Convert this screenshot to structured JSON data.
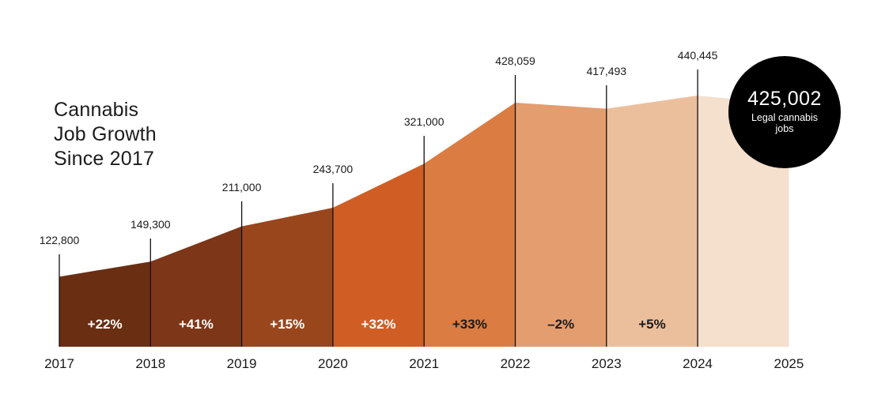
{
  "chart_data": {
    "type": "area",
    "title": [
      "Cannabis",
      "Job Growth",
      "Since 2017"
    ],
    "x": [
      "2017",
      "2018",
      "2019",
      "2020",
      "2021",
      "2022",
      "2023",
      "2024",
      "2025"
    ],
    "values": [
      122800,
      149300,
      211000,
      243700,
      321000,
      428059,
      417493,
      440445,
      425002
    ],
    "value_labels": [
      "122,800",
      "149,300",
      "211,000",
      "243,700",
      "321,000",
      "428,059",
      "417,493",
      "440,445",
      null
    ],
    "growth_labels": [
      "+22%",
      "+41%",
      "+15%",
      "+32%",
      "+33%",
      "–2%",
      "+5%"
    ],
    "segment_colors": [
      "#6a2e12",
      "#7d3617",
      "#9a461d",
      "#d05e24",
      "#db7c43",
      "#e39d6f",
      "#ecbf9c",
      "#f5dfcd"
    ],
    "highlight": {
      "value": "425,002",
      "label": "Legal cannabis jobs"
    },
    "ylim": [
      0,
      500000
    ],
    "grid": false,
    "legend": "none"
  }
}
